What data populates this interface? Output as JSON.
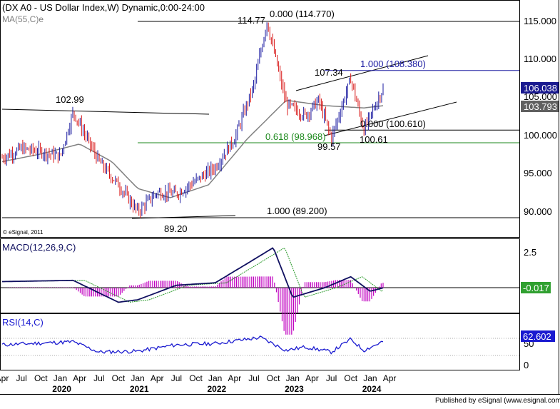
{
  "header": {
    "title": "(DX A0 - US Dollar Index,W) Dynamic,0:00-24:00",
    "ma_label": "MA(55,C)e",
    "copyright": "© eSignal, 2011",
    "publisher": "Published by eSignal (www.esignal.com)"
  },
  "colors": {
    "up": "#1a1aa0",
    "down": "#d81818",
    "ma": "#808080",
    "macd_line": "#101060",
    "signal_line": "#2a9a2a",
    "histogram": "#c000c0",
    "rsi": "#1a1ad0",
    "fib_green": "#1e8a1e",
    "fib_blue": "#1a1aa0",
    "badge_price": "#1a1a90",
    "badge_ma": "#606060",
    "badge_macd": "#30a030",
    "badge_rsi": "#1a1ad0"
  },
  "chart_data": [
    {
      "type": "line",
      "panel": "price",
      "description_type": "candlestick",
      "ylim": [
        87.8,
        117.2
      ],
      "y_ticks": [
        "90.000",
        "95.000",
        "100.000",
        "105.000",
        "110.000",
        "115.000"
      ],
      "last_price": "106.038",
      "last_ma": "103.793",
      "series": [
        {
          "name": "US Dollar Index",
          "x": [
            "2019-04",
            "2019-07",
            "2019-10",
            "2020-01",
            "2020-03",
            "2020-07",
            "2020-10",
            "2021-01",
            "2021-04",
            "2021-07",
            "2021-10",
            "2022-01",
            "2022-04",
            "2022-07",
            "2022-09",
            "2022-12",
            "2023-03",
            "2023-05",
            "2023-07",
            "2023-10",
            "2023-12",
            "2024-03"
          ],
          "values": [
            97,
            98.2,
            97.8,
            97.2,
            102.99,
            96.5,
            93.5,
            90,
            92.5,
            92.3,
            94,
            95.8,
            99.5,
            106.5,
            114.77,
            104,
            102.5,
            104.5,
            99.57,
            107.34,
            100.61,
            106.038
          ]
        },
        {
          "name": "MA(55,C)e",
          "x": [
            "2019-04",
            "2019-10",
            "2020-04",
            "2020-09",
            "2021-01",
            "2021-06",
            "2021-12",
            "2022-06",
            "2022-12",
            "2023-06",
            "2023-12",
            "2024-03"
          ],
          "values": [
            96.5,
            97.5,
            98.8,
            96.5,
            93.0,
            91.8,
            93.5,
            99.5,
            104.5,
            103.8,
            103.5,
            103.793
          ]
        }
      ],
      "annotations": [
        {
          "text": "102.99",
          "kind": "label"
        },
        {
          "text": "114.77",
          "kind": "label"
        },
        {
          "text": "107.34",
          "kind": "label"
        },
        {
          "text": "99.57",
          "kind": "label"
        },
        {
          "text": "100.61",
          "kind": "label"
        },
        {
          "text": "89.20",
          "kind": "label"
        },
        {
          "text": "0.000 (114.770)",
          "kind": "level",
          "value": 114.77
        },
        {
          "text": "1.000 (108.380)",
          "kind": "level",
          "value": 108.38
        },
        {
          "text": "0.000 (100.610)",
          "kind": "level",
          "value": 100.61
        },
        {
          "text": "0.618 (98.968)",
          "kind": "level",
          "value": 98.968
        },
        {
          "text": "1.000 (89.200)",
          "kind": "level",
          "value": 89.2
        }
      ]
    },
    {
      "type": "line",
      "panel": "macd",
      "title": "MACD(12,26,9,C)",
      "y_ticks": [
        "2.5"
      ],
      "last_value": "-0.017",
      "series": [
        {
          "name": "MACD",
          "x": [
            "2019-04",
            "2020-03",
            "2020-10",
            "2021-01",
            "2021-07",
            "2022-01",
            "2022-06",
            "2022-10",
            "2023-01",
            "2023-06",
            "2023-10",
            "2024-01",
            "2024-03"
          ],
          "values": [
            0.5,
            0.6,
            -1.2,
            -1.0,
            0.2,
            0.4,
            2.0,
            3.3,
            -0.8,
            0.0,
            0.9,
            -0.3,
            -0.017
          ]
        }
      ]
    },
    {
      "type": "line",
      "panel": "rsi",
      "title": "RSI(14,C)",
      "y_ticks": [
        "50",
        "0"
      ],
      "last_value": "62.602",
      "series": [
        {
          "name": "RSI",
          "x": [
            "2019-04",
            "2020-03",
            "2020-07",
            "2021-01",
            "2021-07",
            "2022-01",
            "2022-08",
            "2022-12",
            "2023-03",
            "2023-07",
            "2023-10",
            "2023-12",
            "2024-03"
          ],
          "values": [
            55,
            62,
            38,
            40,
            55,
            58,
            72,
            42,
            50,
            38,
            68,
            42,
            62.602
          ]
        }
      ]
    }
  ],
  "x_axis": {
    "month_ticks": [
      "Apr",
      "Jul",
      "Oct",
      "Jan",
      "Apr",
      "Jul",
      "Oct",
      "Jan",
      "Apr",
      "Jul",
      "Oct",
      "Jan",
      "Apr",
      "Jul",
      "Oct",
      "Jan",
      "Apr",
      "Jul",
      "Oct",
      "Jan",
      "Apr"
    ],
    "years": [
      "2020",
      "2021",
      "2022",
      "2023",
      "2024"
    ]
  }
}
